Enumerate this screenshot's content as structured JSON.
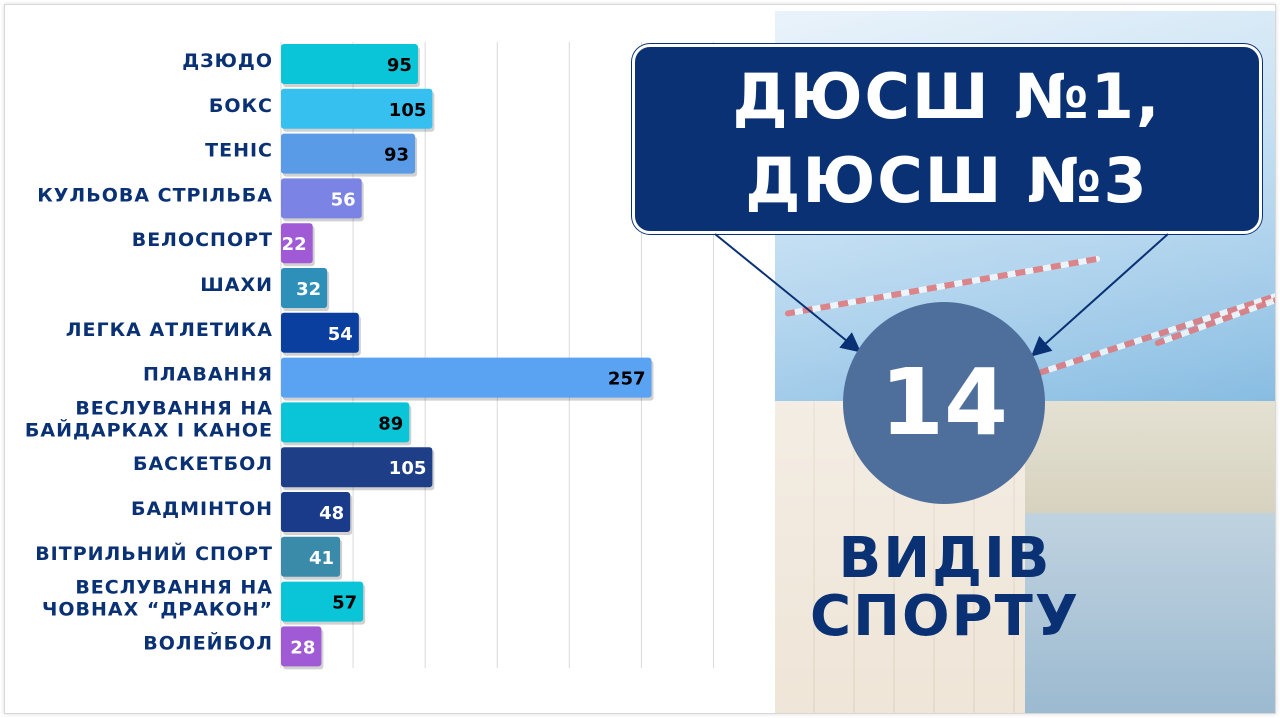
{
  "chart_data": {
    "type": "bar",
    "orientation": "horizontal",
    "categories": [
      "ДЗЮДО",
      "БОКС",
      "ТЕНІС",
      "КУЛЬОВА СТРІЛЬБА",
      "ВЕЛОСПОРТ",
      "ШАХИ",
      "ЛЕГКА АТЛЕТИКА",
      "ПЛАВАННЯ",
      "ВЕСЛУВАННЯ НА\nБАЙДАРКАХ І КАНОЕ",
      "БАСКЕТБОЛ",
      "БАДМІНТОН",
      "ВІТРИЛЬНИЙ СПОРТ",
      "ВЕСЛУВАННЯ НА\nЧОВНАХ “ДРАКОН”",
      "ВОЛЕЙБОЛ"
    ],
    "values": [
      95,
      105,
      93,
      56,
      22,
      32,
      54,
      257,
      89,
      105,
      48,
      41,
      57,
      28
    ],
    "bar_colors": [
      "#0ac4d8",
      "#36c0f0",
      "#5a9be8",
      "#7b84e4",
      "#a05ad6",
      "#2e8fb8",
      "#0a3fa0",
      "#5aa2f2",
      "#0ac4d8",
      "#1e3f88",
      "#1a3a8a",
      "#3a8aaa",
      "#0ac4d8",
      "#a05ad6"
    ],
    "value_label_colors": [
      "#000000",
      "#000000",
      "#000000",
      "#ffffff",
      "#ffffff",
      "#ffffff",
      "#ffffff",
      "#000000",
      "#000000",
      "#ffffff",
      "#ffffff",
      "#ffffff",
      "#000000",
      "#ffffff"
    ],
    "xlim": [
      0,
      360
    ],
    "grid": "vertical",
    "title": "",
    "xlabel": "",
    "ylabel": "",
    "category_label_color": "#0a3173"
  },
  "callout": {
    "line1": "ДЮСШ №1,",
    "line2": "ДЮСШ №3"
  },
  "highlight": {
    "count": "14",
    "caption_line1": "ВИДІВ",
    "caption_line2": "СПОРТУ"
  },
  "colors": {
    "navy": "#0a3173",
    "circle": "#4e6f9c"
  }
}
